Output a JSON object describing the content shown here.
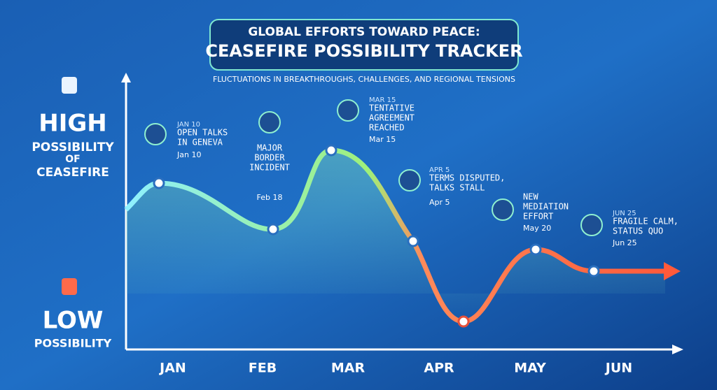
{
  "header": {
    "title": "GLOBAL EFFORTS TOWARD PEACE:",
    "banner": "CEASEFIRE POSSIBILITY TRACKER",
    "subtitle": "FLUCTUATIONS IN BREAKTHROUGHS, CHALLENGES, AND REGIONAL TENSIONS"
  },
  "y_axis": {
    "high": [
      "HIGH",
      "POSSIBILITY",
      "OF",
      "CEASEFIRE"
    ],
    "low": [
      "LOW",
      "POSSIBILITY"
    ]
  },
  "months": [
    "JAN",
    "FEB",
    "MAR",
    "APR",
    "MAY",
    "JUN"
  ],
  "events": [
    {
      "heading": "JAN 10",
      "lines": [
        "OPEN TALKS",
        "IN GENEVA"
      ],
      "date": "Jan 10"
    },
    {
      "lines": [
        "MAJOR",
        "BORDER",
        "INCIDENT"
      ],
      "date": "Feb 18"
    },
    {
      "heading": "MAR 15",
      "lines": [
        "TENTATIVE",
        "AGREEMENT",
        "REACHED"
      ],
      "date": "Mar 15"
    },
    {
      "heading": "APR 5",
      "lines": [
        "TERMS DISPUTED,",
        "TALKS STALL"
      ],
      "date": "Apr 5"
    },
    {
      "lines": [
        "NEW",
        "MEDIATION",
        "EFFORT"
      ],
      "date": "May 20"
    },
    {
      "heading": "JUN 25",
      "lines": [
        "FRAGILE CALM,",
        "STATUS QUO"
      ],
      "date": "Jun 25"
    }
  ]
}
